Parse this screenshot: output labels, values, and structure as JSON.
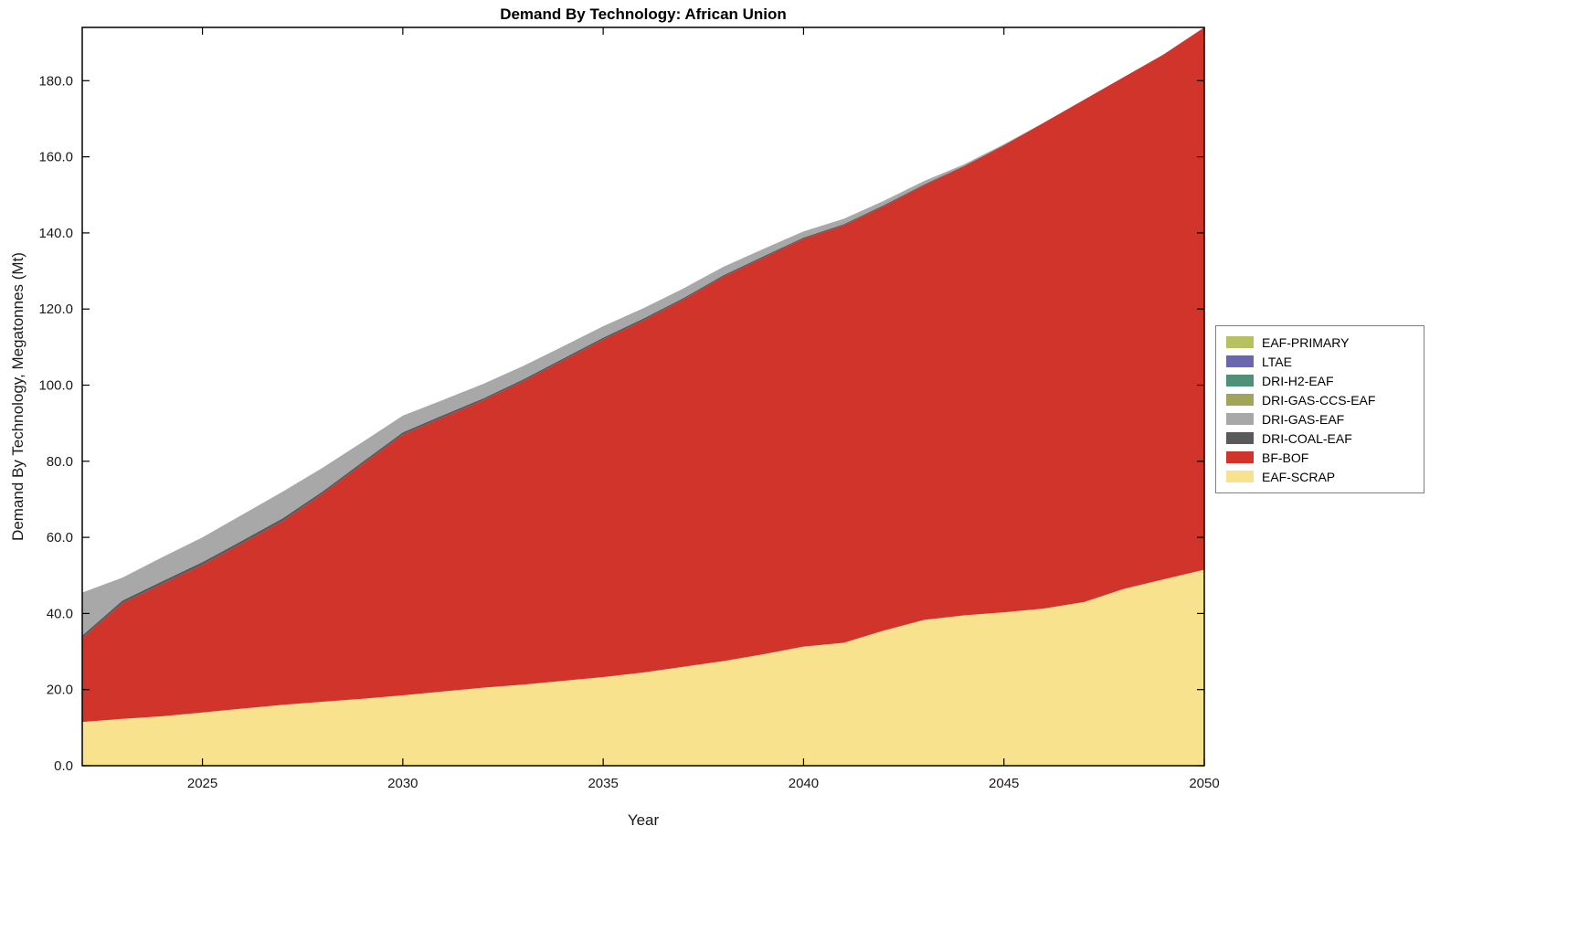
{
  "chart_data": {
    "type": "area",
    "stacked": true,
    "title": "Demand By Technology: African Union",
    "xlabel": "Year",
    "ylabel": "Demand By Technology, Megatonnes (Mt)",
    "xlim": [
      2022,
      2050
    ],
    "ylim": [
      0,
      194
    ],
    "grid": false,
    "legend_position": "right",
    "x": [
      2022,
      2023,
      2024,
      2025,
      2026,
      2027,
      2028,
      2029,
      2030,
      2031,
      2032,
      2033,
      2034,
      2035,
      2036,
      2037,
      2038,
      2039,
      2040,
      2041,
      2042,
      2043,
      2044,
      2045,
      2046,
      2047,
      2048,
      2049,
      2050
    ],
    "xticks": {
      "values": [
        2025,
        2030,
        2035,
        2040,
        2045,
        2050
      ],
      "labels": [
        "2025",
        "2030",
        "2035",
        "2040",
        "2045",
        "2050"
      ]
    },
    "yticks": {
      "values": [
        0,
        20,
        40,
        60,
        80,
        100,
        120,
        140,
        160,
        180
      ],
      "labels": [
        "0.0",
        "20.0",
        "40.0",
        "60.0",
        "80.0",
        "100.0",
        "120.0",
        "140.0",
        "160.0",
        "180.0"
      ]
    },
    "stack_order_bottom_to_top": [
      "EAF-SCRAP",
      "BF-BOF",
      "DRI-COAL-EAF",
      "DRI-GAS-EAF",
      "DRI-GAS-CCS-EAF",
      "DRI-H2-EAF",
      "LTAE",
      "EAF-PRIMARY"
    ],
    "series": [
      {
        "name": "EAF-PRIMARY",
        "color": "#b8c161",
        "values": [
          0,
          0,
          0,
          0,
          0,
          0,
          0,
          0,
          0,
          0,
          0,
          0,
          0,
          0,
          0,
          0,
          0,
          0,
          0,
          0,
          0,
          0,
          0,
          0,
          0,
          0,
          0,
          0,
          0
        ]
      },
      {
        "name": "LTAE",
        "color": "#6b66b0",
        "values": [
          0,
          0,
          0,
          0,
          0,
          0,
          0,
          0,
          0,
          0,
          0,
          0,
          0,
          0,
          0,
          0,
          0,
          0,
          0,
          0,
          0,
          0,
          0,
          0,
          0,
          0,
          0,
          0,
          0
        ]
      },
      {
        "name": "DRI-H2-EAF",
        "color": "#4f9178",
        "values": [
          0,
          0,
          0,
          0,
          0,
          0,
          0,
          0,
          0,
          0,
          0,
          0,
          0,
          0,
          0,
          0,
          0,
          0,
          0,
          0,
          0,
          0,
          0,
          0,
          0,
          0,
          0,
          0,
          0
        ]
      },
      {
        "name": "DRI-GAS-CCS-EAF",
        "color": "#a2a558",
        "values": [
          0,
          0,
          0,
          0,
          0,
          0,
          0,
          0,
          0,
          0,
          0,
          0,
          0,
          0,
          0,
          0,
          0,
          0,
          0,
          0,
          0,
          0,
          0,
          0,
          0,
          0,
          0,
          0,
          0
        ]
      },
      {
        "name": "DRI-GAS-EAF",
        "color": "#a8a8a8",
        "values": [
          11.3,
          6.0,
          6.3,
          6.5,
          6.8,
          7.0,
          6.2,
          5.2,
          4.4,
          4.0,
          3.8,
          3.5,
          3.2,
          3.0,
          2.7,
          2.5,
          2.2,
          1.9,
          1.6,
          1.4,
          1.1,
          0.9,
          0.4,
          0.2,
          0,
          0,
          0,
          0,
          0
        ]
      },
      {
        "name": "DRI-COAL-EAF",
        "color": "#5a5a5a",
        "values": [
          0.7,
          0.7,
          0.7,
          0.7,
          0.7,
          0.7,
          0.6,
          0.6,
          0.6,
          0.6,
          0.5,
          0.5,
          0.5,
          0.5,
          0.5,
          0.4,
          0.4,
          0.4,
          0.3,
          0.3,
          0.3,
          0.2,
          0.1,
          0.1,
          0,
          0,
          0,
          0,
          0
        ]
      },
      {
        "name": "BF-BOF",
        "color": "#d1342b",
        "values": [
          22.0,
          30.4,
          34.8,
          38.8,
          43.5,
          48.3,
          54.7,
          61.7,
          68.5,
          72.0,
          75.5,
          79.7,
          84.2,
          88.7,
          92.5,
          96.5,
          101.0,
          104.2,
          107.2,
          109.7,
          111.5,
          114.2,
          118.0,
          122.7,
          127.7,
          132.0,
          134.5,
          138.0,
          142.5
        ]
      },
      {
        "name": "EAF-SCRAP",
        "color": "#f9e28e",
        "values": [
          11.5,
          12.3,
          13.0,
          14.0,
          15.0,
          16.0,
          16.8,
          17.6,
          18.5,
          19.5,
          20.5,
          21.3,
          22.3,
          23.3,
          24.5,
          26.0,
          27.5,
          29.3,
          31.3,
          32.3,
          35.5,
          38.3,
          39.5,
          40.3,
          41.3,
          43.0,
          46.5,
          49.0,
          51.5
        ]
      }
    ],
    "axis_color": "#000000",
    "tick_label_color": "#1a1a1a"
  }
}
